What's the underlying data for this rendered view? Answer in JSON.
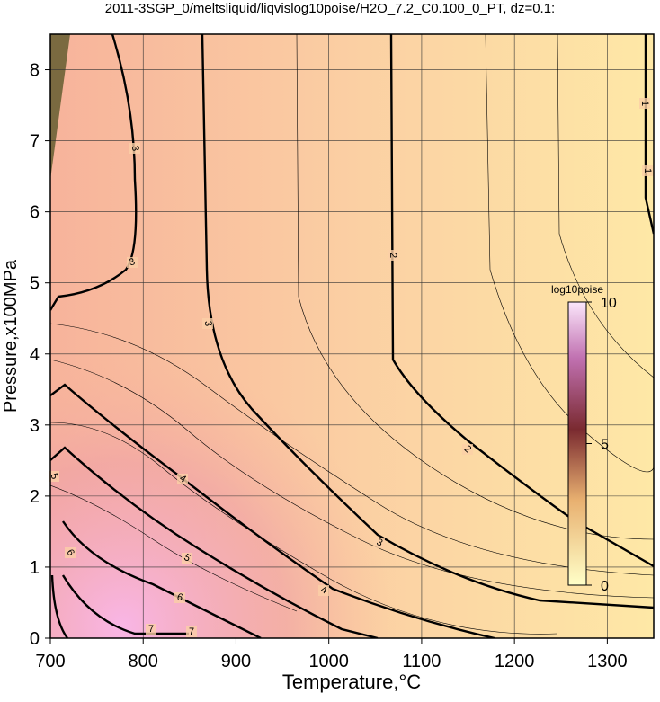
{
  "chart_data": {
    "type": "contour",
    "title": "2011-3SGP_0/meltsliquid/liqvislog10poise/H2O_7.2_C0.100_0_PT, dz=0.1:",
    "x_label": "Temperature,°C",
    "y_label": "Pressure,x100MPa",
    "xlim": [
      700,
      1350
    ],
    "xticks": [
      700,
      800,
      900,
      1000,
      1100,
      1200,
      1300
    ],
    "ylim": [
      0,
      8.5
    ],
    "yticks": [
      0,
      1,
      2,
      3,
      4,
      5,
      6,
      7,
      8
    ],
    "grid": true,
    "contour_levels": [
      1,
      2,
      3,
      4,
      5,
      6,
      7
    ],
    "colorbar": {
      "label": "log10poise",
      "lim": [
        0,
        10
      ],
      "ticks": [
        0,
        5,
        10
      ]
    }
  }
}
